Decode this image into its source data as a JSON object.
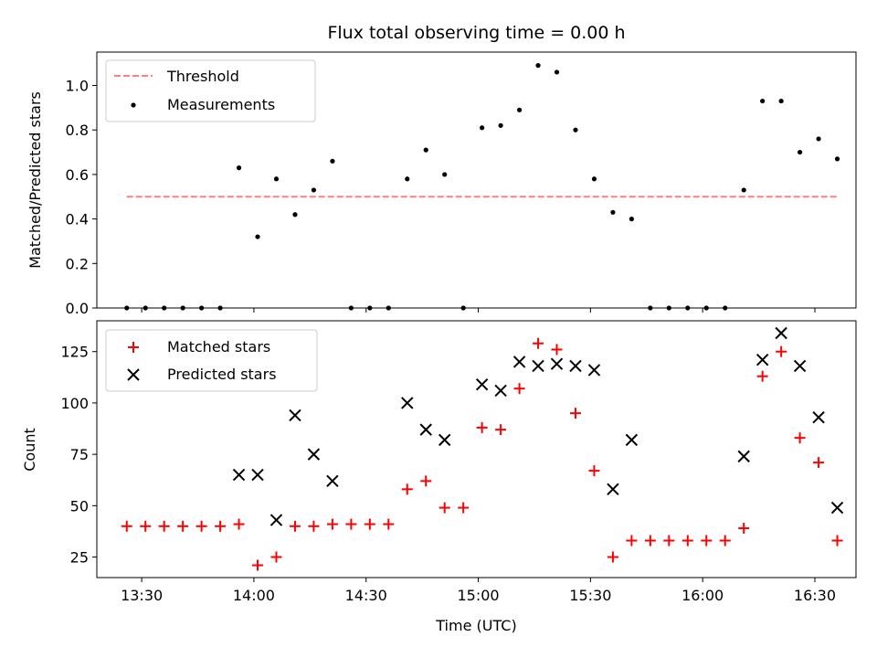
{
  "chart_data": [
    {
      "type": "scatter",
      "title": "Flux total observing time = 0.00 h",
      "xlabel": "",
      "ylabel": "Matched/Predicted stars",
      "ylim": [
        0,
        1.15
      ],
      "xlim": [
        "13:18",
        "16:41"
      ],
      "yticks": [
        0.0,
        0.2,
        0.4,
        0.6,
        0.8,
        1.0
      ],
      "ytick_labels": [
        "0.0",
        "0.2",
        "0.4",
        "0.6",
        "0.8",
        "1.0"
      ],
      "legend_position": "upper-left",
      "series": [
        {
          "name": "Threshold",
          "kind": "dashed-line",
          "color": "#ff7f7f",
          "x": [
            "13:26",
            "16:36"
          ],
          "y": [
            0.5,
            0.5
          ]
        },
        {
          "name": "Measurements",
          "kind": "dots",
          "color": "#000000",
          "x": [
            "13:26",
            "13:31",
            "13:36",
            "13:41",
            "13:46",
            "13:51",
            "13:56",
            "14:01",
            "14:06",
            "14:11",
            "14:16",
            "14:21",
            "14:26",
            "14:31",
            "14:36",
            "14:41",
            "14:46",
            "14:51",
            "14:56",
            "15:01",
            "15:06",
            "15:11",
            "15:16",
            "15:21",
            "15:26",
            "15:31",
            "15:36",
            "15:41",
            "15:46",
            "15:51",
            "15:56",
            "16:01",
            "16:06",
            "16:11",
            "16:16",
            "16:21",
            "16:26",
            "16:31",
            "16:36"
          ],
          "y": [
            0,
            0,
            0,
            0,
            0,
            0,
            0.63,
            0.32,
            0.58,
            0.42,
            0.53,
            0.66,
            0,
            0,
            0,
            0.58,
            0.71,
            0.6,
            0,
            0.81,
            0.82,
            0.89,
            1.09,
            1.06,
            0.8,
            0.58,
            0.43,
            0.4,
            0,
            0,
            0,
            0,
            0,
            0.53,
            0.93,
            0.93,
            0.7,
            0.76,
            0.67
          ]
        }
      ]
    },
    {
      "type": "scatter",
      "title": "",
      "xlabel": "Time (UTC)",
      "ylabel": "Count",
      "ylim": [
        15,
        140
      ],
      "xlim": [
        "13:18",
        "16:41"
      ],
      "yticks": [
        25,
        50,
        75,
        100,
        125
      ],
      "ytick_labels": [
        "25",
        "50",
        "75",
        "100",
        "125"
      ],
      "xticks": [
        "13:30",
        "14:00",
        "14:30",
        "15:00",
        "15:30",
        "16:00",
        "16:30"
      ],
      "legend_position": "upper-left",
      "series": [
        {
          "name": "Matched stars",
          "marker": "plus",
          "color": "#ff0000",
          "x": [
            "13:26",
            "13:31",
            "13:36",
            "13:41",
            "13:46",
            "13:51",
            "13:56",
            "14:01",
            "14:06",
            "14:11",
            "14:16",
            "14:21",
            "14:26",
            "14:31",
            "14:36",
            "14:41",
            "14:46",
            "14:51",
            "14:56",
            "15:01",
            "15:06",
            "15:11",
            "15:16",
            "15:21",
            "15:26",
            "15:31",
            "15:36",
            "15:41",
            "15:46",
            "15:51",
            "15:56",
            "16:01",
            "16:06",
            "16:11",
            "16:16",
            "16:21",
            "16:26",
            "16:31",
            "16:36"
          ],
          "y": [
            40,
            40,
            40,
            40,
            40,
            40,
            41,
            21,
            25,
            40,
            40,
            41,
            41,
            41,
            41,
            58,
            62,
            49,
            49,
            88,
            87,
            107,
            129,
            126,
            95,
            67,
            25,
            33,
            33,
            33,
            33,
            33,
            33,
            39,
            113,
            125,
            83,
            71,
            33
          ]
        },
        {
          "name": "Predicted stars",
          "marker": "x",
          "color": "#000000",
          "x": [
            "13:56",
            "14:01",
            "14:06",
            "14:11",
            "14:16",
            "14:21",
            "14:41",
            "14:46",
            "14:51",
            "15:01",
            "15:06",
            "15:11",
            "15:16",
            "15:21",
            "15:26",
            "15:31",
            "15:36",
            "15:41",
            "16:11",
            "16:16",
            "16:21",
            "16:26",
            "16:31",
            "16:36"
          ],
          "y": [
            65,
            65,
            43,
            94,
            75,
            62,
            100,
            87,
            82,
            109,
            106,
            120,
            118,
            119,
            118,
            116,
            58,
            82,
            74,
            121,
            134,
            118,
            93,
            49
          ]
        }
      ]
    }
  ]
}
